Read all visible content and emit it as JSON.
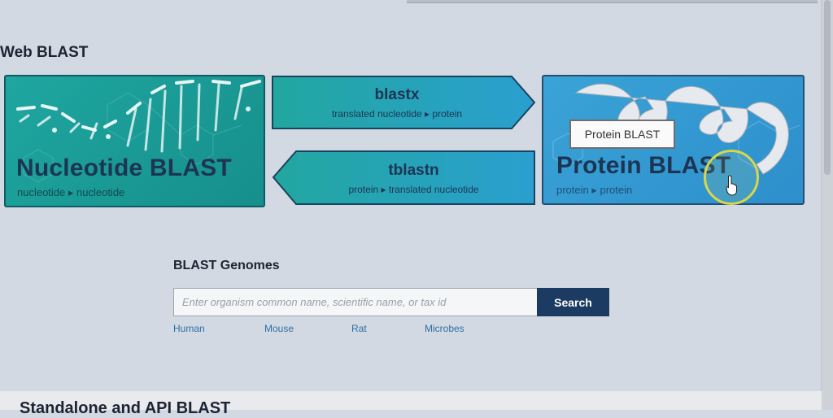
{
  "section_title": "Web BLAST",
  "nucleotide_card": {
    "title": "Nucleotide BLAST",
    "subtitle": "nucleotide ▸ nucleotide",
    "color": "#1fa6a0"
  },
  "blastx": {
    "title": "blastx",
    "subtitle": "translated nucleotide ▸ protein"
  },
  "tblastn": {
    "title": "tblastn",
    "subtitle": "protein ▸ translated nucleotide"
  },
  "protein_card": {
    "title": "Protein BLAST",
    "subtitle": "protein ▸ protein",
    "tooltip": "Protein BLAST",
    "color": "#3aa3d6"
  },
  "genomes": {
    "title": "BLAST Genomes",
    "search_placeholder": "Enter organism common name, scientific name, or tax id",
    "search_value": "",
    "search_button": "Search",
    "links": [
      "Human",
      "Mouse",
      "Rat",
      "Microbes"
    ]
  },
  "next_section_title": "Standalone and API BLAST",
  "icons": {
    "dna": "dna-helix-icon",
    "protein": "protein-ribbon-icon",
    "cursor": "hand-pointer-icon"
  }
}
